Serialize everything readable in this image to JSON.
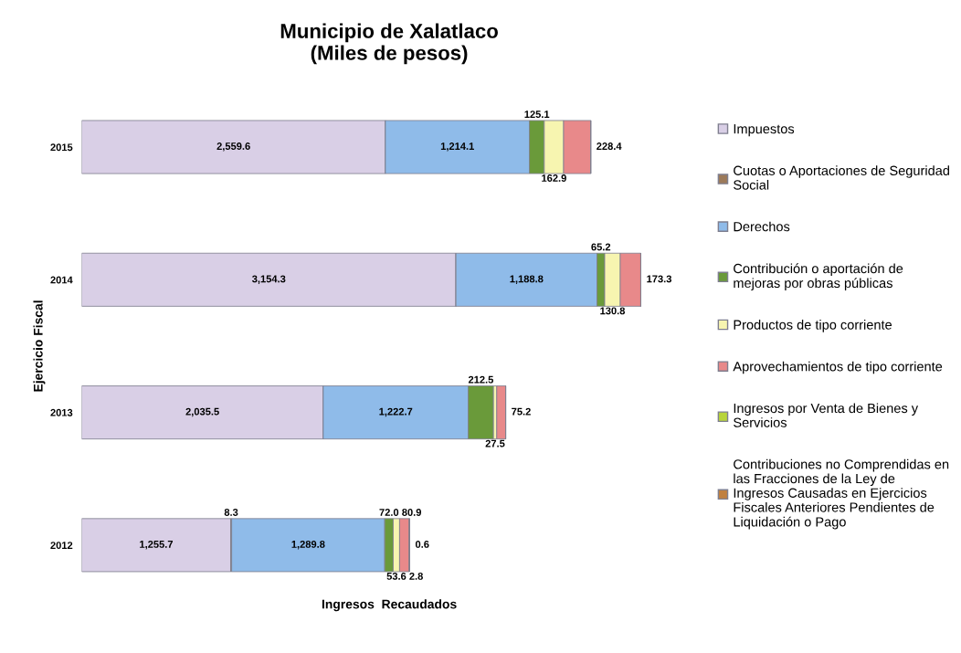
{
  "chart_data": {
    "type": "bar",
    "orientation": "horizontal",
    "stacked": true,
    "title": "Municipio de Xalatlaco\n(Miles de pesos)",
    "xlabel": "Ingresos  Recaudados",
    "ylabel": "Ejercicio Fiscal",
    "tick_labels": "y",
    "legend": "right",
    "grid": false,
    "categories": [
      "2015",
      "2014",
      "2013",
      "2012"
    ],
    "series": [
      {
        "name": "Impuestos",
        "color": "#d9cfe6",
        "values": [
          2559.6,
          3154.3,
          2035.5,
          1255.7
        ],
        "value_labels": [
          "2,559.6",
          "3,154.3",
          "2,035.5",
          "1,255.7"
        ]
      },
      {
        "name": "Cuotas o Aportaciones de Seguridad Social",
        "color": "#9c7a5a",
        "values": [
          null,
          null,
          null,
          8.3
        ],
        "value_labels": [
          null,
          null,
          null,
          "8.3"
        ]
      },
      {
        "name": "Derechos",
        "color": "#8fbbe9",
        "values": [
          1214.1,
          1188.8,
          1222.7,
          1289.8
        ],
        "value_labels": [
          "1,214.1",
          "1,188.8",
          "1,222.7",
          "1,289.8"
        ]
      },
      {
        "name": "Contribución o aportación de mejoras por obras públicas",
        "color": "#6a9a3a",
        "values": [
          125.1,
          65.2,
          212.5,
          72.0
        ],
        "value_labels": [
          "125.1",
          "65.2",
          "212.5",
          "72.0"
        ]
      },
      {
        "name": "Productos de tipo corriente",
        "color": "#f7f5b0",
        "values": [
          162.9,
          130.8,
          27.5,
          53.6
        ],
        "value_labels": [
          "162.9",
          "130.8",
          "27.5",
          "53.6"
        ]
      },
      {
        "name": "Aprovechamientos de tipo corriente",
        "color": "#e8898a",
        "values": [
          228.4,
          173.3,
          75.2,
          80.9
        ],
        "value_labels": [
          "228.4",
          "173.3",
          "75.2",
          "80.9"
        ]
      },
      {
        "name": "Ingresos por Venta de Bienes y Servicios",
        "color": "#b8d43a",
        "values": [
          null,
          null,
          null,
          2.8
        ],
        "value_labels": [
          null,
          null,
          null,
          "2.8"
        ]
      },
      {
        "name": "Contribuciones no Comprendidas en las Fracciones de la Ley de Ingresos Causadas en Ejercicios Fiscales Anteriores Pendientes de Liquidación o Pago",
        "color": "#c08040",
        "values": [
          null,
          null,
          null,
          0.6
        ],
        "value_labels": [
          null,
          null,
          null,
          "0.6"
        ]
      }
    ]
  }
}
